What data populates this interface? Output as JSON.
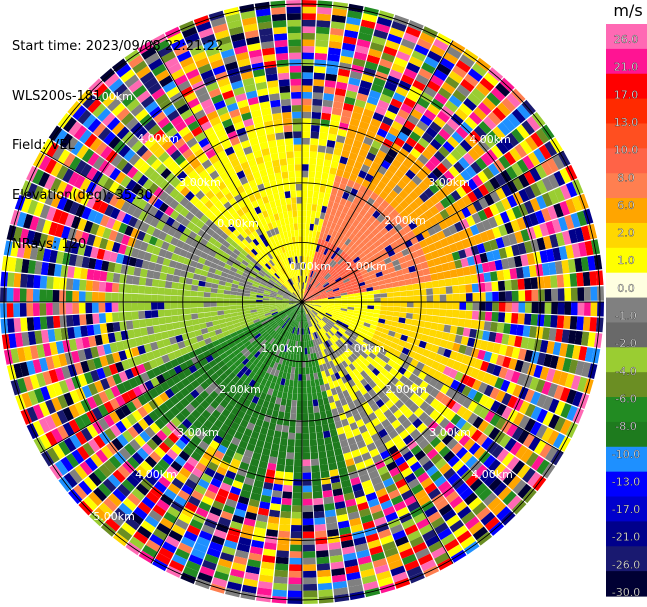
{
  "header": {
    "start_time": "Start time: 2023/09/08 22:21:22",
    "station": "WLS200s-181",
    "field": "Field: VEL",
    "elevation": "Elevation(deg): 35.30",
    "nrays": "NRays: 120"
  },
  "chart_data": {
    "type": "heatmap",
    "projection": "polar-ppi",
    "field": "VEL",
    "units": "m/s",
    "n_rays": 120,
    "range_rings": [
      {
        "range": "1.00km",
        "label": "1.00km"
      },
      {
        "range": "2.00km",
        "label": "2.00km"
      },
      {
        "range": "3.00km",
        "label": "3.00km"
      },
      {
        "range": "4.00km",
        "label": "4.00km"
      },
      {
        "range": "5.00km",
        "label": "5.00km"
      }
    ],
    "ring_labels_upper": [
      "0.00km",
      "2.00km",
      "3.00km",
      "4.00km",
      "5.00km"
    ],
    "ring_labels_lower": [
      "1.00km",
      "1.00km",
      "2.00km",
      "2.00km",
      "3.00km",
      "3.00km",
      "4.00km",
      "4.00km",
      "5.00km"
    ],
    "ring_label_center": "0.00km",
    "colorbar": {
      "unit_label": "m/s",
      "ticks": [
        "26.0",
        "21.0",
        "17.0",
        "13.0",
        "10.0",
        "8.0",
        "6.0",
        "2.0",
        "1.0",
        "0.0",
        "-1.0",
        "-2.0",
        "-4.0",
        "-6.0",
        "-8.0",
        "-10.0",
        "-13.0",
        "-17.0",
        "-21.0",
        "-26.0",
        "-30.0"
      ],
      "colors": [
        "#ff69b4",
        "#ff1493",
        "#ff0000",
        "#ff2a00",
        "#ff4f20",
        "#ff6347",
        "#ff7f50",
        "#ffa500",
        "#ffd700",
        "#ffff00",
        "#ffffe0",
        "#808080",
        "#696969",
        "#9acd32",
        "#6b8e23",
        "#228b22",
        "#1e7b1e",
        "#1e90ff",
        "#0000ff",
        "#0000cd",
        "#00008b",
        "#191970",
        "#000033"
      ]
    },
    "velocity_pattern": [
      {
        "sector": "north-east",
        "dominant_value": 8.0
      },
      {
        "sector": "north",
        "dominant_value": 2.0
      },
      {
        "sector": "west",
        "dominant_value": -2.0
      },
      {
        "sector": "south",
        "dominant_value": -6.0
      },
      {
        "sector": "south-east",
        "dominant_value": -1.0
      },
      {
        "sector": "east",
        "dominant_value": 2.0
      }
    ]
  }
}
